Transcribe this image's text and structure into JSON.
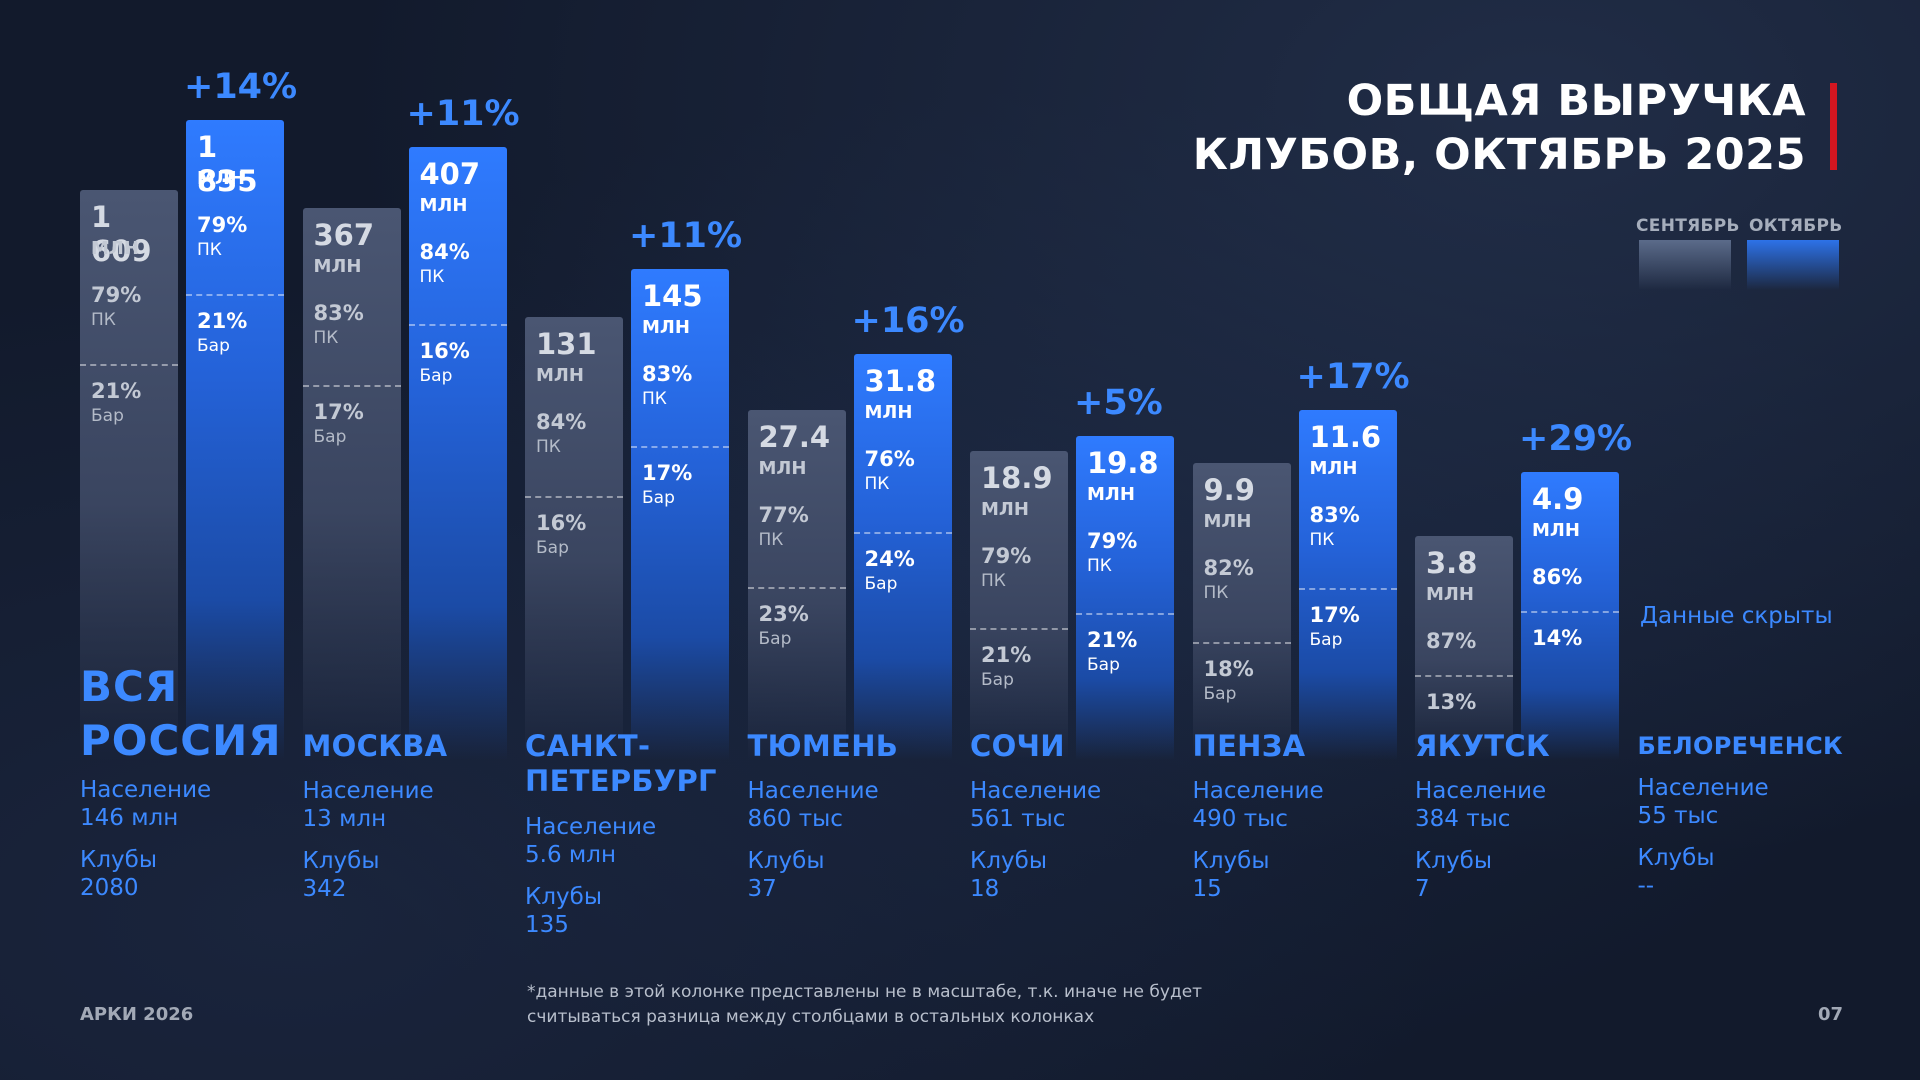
{
  "title": {
    "line1": "ОБЩАЯ ВЫРУЧКА",
    "line2": "КЛУБОВ, ОКТЯБРЬ 2025"
  },
  "legend": {
    "september": "СЕНТЯБРЬ",
    "october": "ОКТЯБРЬ"
  },
  "labels": {
    "unit": "МЛН",
    "pc": "ПК",
    "bar": "Бар",
    "population": "Население",
    "clubs": "Клубы",
    "hidden": "Данные скрыты"
  },
  "chart_data": {
    "type": "bar",
    "title": "ОБЩАЯ ВЫРУЧКА КЛУБОВ, ОКТЯБРЬ 2025",
    "unit": "млн",
    "series": [
      {
        "name": "СЕНТЯБРЬ",
        "color": "#4a5672"
      },
      {
        "name": "ОКТЯБРЬ",
        "color": "#2f7bff"
      }
    ],
    "groups": [
      {
        "city": [
          "ВСЯ",
          "РОССИЯ"
        ],
        "population": "146 млн",
        "clubs": "2080",
        "sep": {
          "value": "1 609",
          "pc": "79%",
          "bar": "21%"
        },
        "oct": {
          "value": "1 835",
          "pc": "79%",
          "bar": "21%"
        },
        "growth": "+14%",
        "note": "not to scale"
      },
      {
        "city": [
          "МОСКВА"
        ],
        "population": "13 млн",
        "clubs": "342",
        "sep": {
          "value": "367",
          "pc": "83%",
          "bar": "17%"
        },
        "oct": {
          "value": "407",
          "pc": "84%",
          "bar": "16%"
        },
        "growth": "+11%"
      },
      {
        "city": [
          "САНКТ-",
          "ПЕТЕРБУРГ"
        ],
        "population": "5.6 млн",
        "clubs": "135",
        "sep": {
          "value": "131",
          "pc": "84%",
          "bar": "16%"
        },
        "oct": {
          "value": "145",
          "pc": "83%",
          "bar": "17%"
        },
        "growth": "+11%"
      },
      {
        "city": [
          "ТЮМЕНЬ"
        ],
        "population": "860 тыс",
        "clubs": "37",
        "sep": {
          "value": "27.4",
          "pc": "77%",
          "bar": "23%"
        },
        "oct": {
          "value": "31.8",
          "pc": "76%",
          "bar": "24%"
        },
        "growth": "+16%"
      },
      {
        "city": [
          "СОЧИ"
        ],
        "population": "561 тыс",
        "clubs": "18",
        "sep": {
          "value": "18.9",
          "pc": "79%",
          "bar": "21%"
        },
        "oct": {
          "value": "19.8",
          "pc": "79%",
          "bar": "21%"
        },
        "growth": "+5%"
      },
      {
        "city": [
          "ПЕНЗА"
        ],
        "population": "490 тыс",
        "clubs": "15",
        "sep": {
          "value": "9.9",
          "pc": "82%",
          "bar": "18%"
        },
        "oct": {
          "value": "11.6",
          "pc": "83%",
          "bar": "17%"
        },
        "growth": "+17%"
      },
      {
        "city": [
          "ЯКУТСК"
        ],
        "population": "384 тыс",
        "clubs": "7",
        "sep": {
          "value": "3.8",
          "pc": "87%",
          "bar": "13%"
        },
        "oct": {
          "value": "4.9",
          "pc": "86%",
          "bar": "14%"
        },
        "growth": "+29%"
      },
      {
        "city": [
          "БЕЛОРЕЧЕНСК"
        ],
        "population": "55 тыс",
        "clubs": "--",
        "hidden": true
      }
    ]
  },
  "footer": {
    "left": "АРКИ 2026",
    "footnote_line1": "*данные в этой колонке представлены не в масштабе, т.к. иначе не будет",
    "footnote_line2": "считываться разница между столбцами в остальных колонках",
    "page": "07"
  }
}
